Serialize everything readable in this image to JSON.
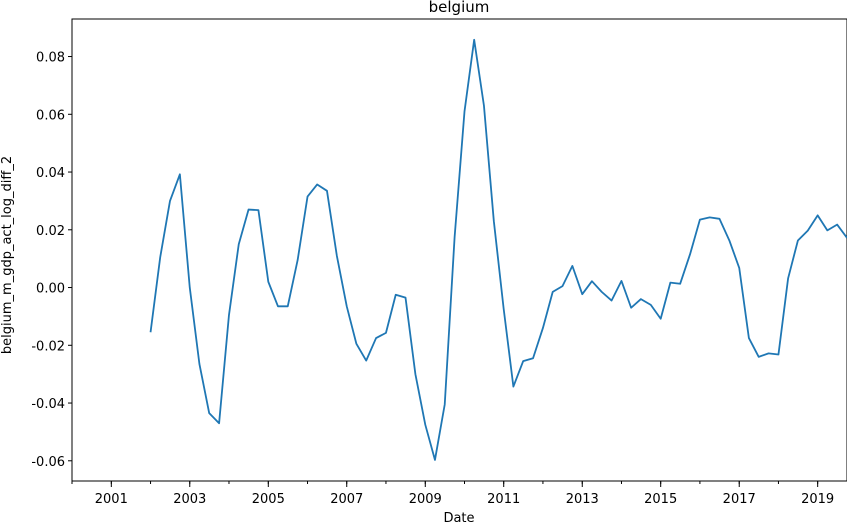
{
  "chart_data": {
    "type": "line",
    "title": "belgium",
    "xlabel": "Date",
    "ylabel": "belgium_m_gdp_act_log_diff_2",
    "xlim": [
      "2000-01-01",
      "2019-10-01"
    ],
    "ylim": [
      -0.067,
      0.093
    ],
    "x_ticks": [
      "2001",
      "2003",
      "2005",
      "2007",
      "2009",
      "2011",
      "2013",
      "2015",
      "2017",
      "2019"
    ],
    "y_ticks": [
      "-0.06",
      "-0.04",
      "-0.02",
      "0.00",
      "0.02",
      "0.04",
      "0.06",
      "0.08"
    ],
    "grid": false,
    "line_color": "#1f77b4",
    "series": [
      {
        "x": [
          "2002-01-01",
          "2002-04-01",
          "2002-07-01",
          "2002-10-01",
          "2003-01-01",
          "2003-04-01",
          "2003-07-01",
          "2003-10-01",
          "2004-01-01",
          "2004-04-01",
          "2004-07-01",
          "2004-10-01",
          "2005-01-01",
          "2005-04-01",
          "2005-07-01",
          "2005-10-01",
          "2006-01-01",
          "2006-04-01",
          "2006-07-01",
          "2006-10-01",
          "2007-01-01",
          "2007-04-01",
          "2007-07-01",
          "2007-10-01",
          "2008-01-01",
          "2008-04-01",
          "2008-07-01",
          "2008-10-01",
          "2009-01-01",
          "2009-04-01",
          "2009-07-01",
          "2009-10-01",
          "2010-01-01",
          "2010-04-01",
          "2010-07-01",
          "2010-10-01",
          "2011-01-01",
          "2011-04-01",
          "2011-07-01",
          "2011-10-01",
          "2012-01-01",
          "2012-04-01",
          "2012-07-01",
          "2012-10-01",
          "2013-01-01",
          "2013-04-01",
          "2013-07-01",
          "2013-10-01",
          "2014-01-01",
          "2014-04-01",
          "2014-07-01",
          "2014-10-01",
          "2015-01-01",
          "2015-04-01",
          "2015-07-01",
          "2015-10-01",
          "2016-01-01",
          "2016-04-01",
          "2016-07-01",
          "2016-10-01",
          "2017-01-01",
          "2017-04-01",
          "2017-07-01",
          "2017-10-01",
          "2018-01-01",
          "2018-04-01",
          "2018-07-01",
          "2018-10-01",
          "2019-01-01",
          "2019-04-01",
          "2019-07-01",
          "2019-10-01"
        ],
        "y": [
          -0.0155,
          0.0105,
          0.03,
          0.0392,
          0.0,
          -0.0265,
          -0.0435,
          -0.047,
          -0.0095,
          0.015,
          0.027,
          0.0268,
          0.002,
          -0.0065,
          -0.0065,
          0.0095,
          0.0315,
          0.0357,
          0.0335,
          0.011,
          -0.0065,
          -0.0195,
          -0.0253,
          -0.0175,
          -0.0157,
          -0.0025,
          -0.0035,
          -0.03,
          -0.0475,
          -0.0597,
          -0.0405,
          0.0175,
          0.061,
          0.0858,
          0.063,
          0.023,
          -0.0075,
          -0.0343,
          -0.0255,
          -0.0245,
          -0.014,
          -0.0015,
          0.0005,
          0.0075,
          -0.0023,
          0.0022,
          -0.0015,
          -0.0045,
          0.0023,
          -0.007,
          -0.004,
          -0.006,
          -0.0108,
          0.0017,
          0.0013,
          0.0115,
          0.0235,
          0.0243,
          0.0238,
          0.0163,
          0.0068,
          -0.0175,
          -0.024,
          -0.0228,
          -0.0232,
          0.0032,
          0.0163,
          0.0197,
          0.025,
          0.0198,
          0.0218,
          0.0172
        ]
      }
    ]
  }
}
